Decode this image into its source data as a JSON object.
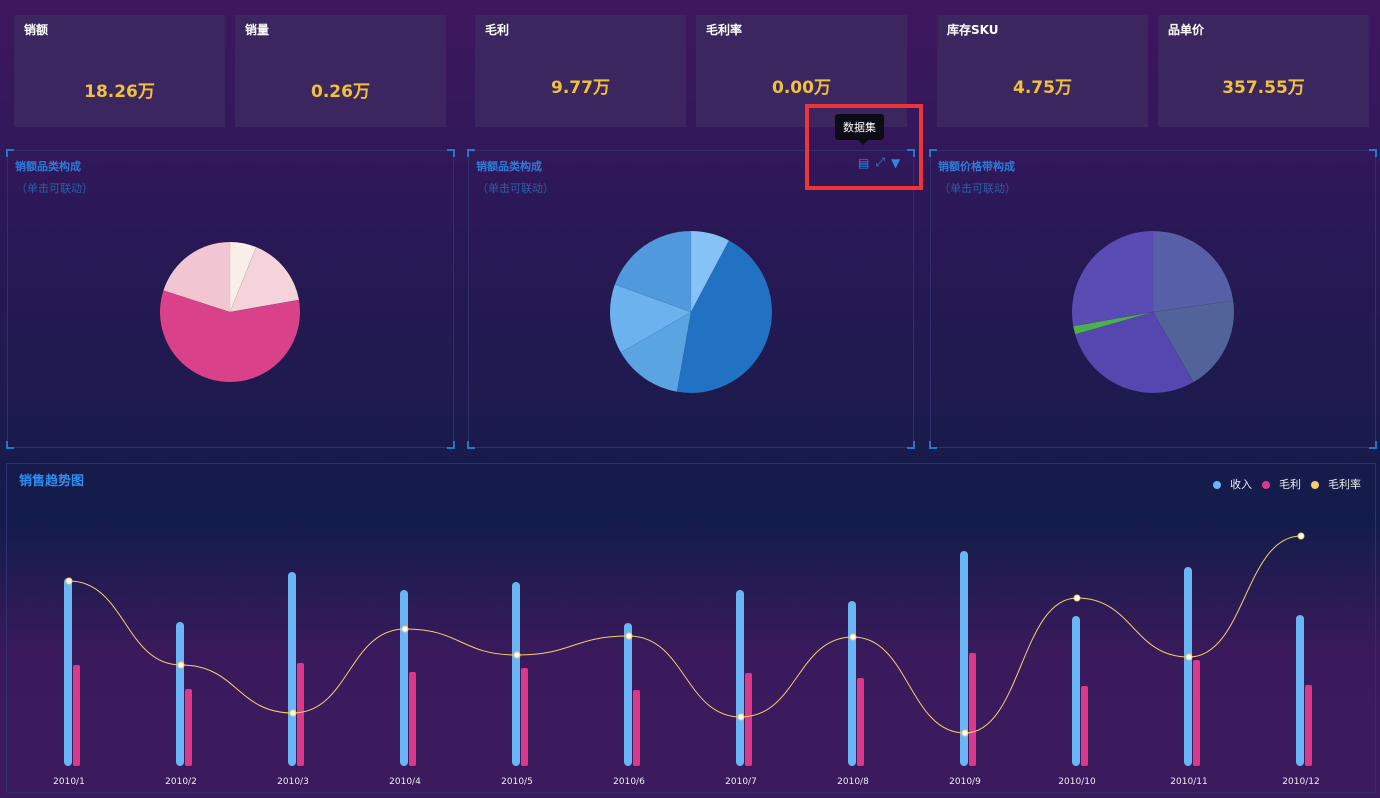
{
  "kpis": [
    {
      "title": "销额",
      "value": "18.26万"
    },
    {
      "title": "销量",
      "value": "0.26万"
    },
    {
      "title": "毛利",
      "value": "9.77万"
    },
    {
      "title": "毛利率",
      "value": "0.00万"
    },
    {
      "title": "库存SKU",
      "value": "4.75万"
    },
    {
      "title": "品单价",
      "value": "357.55万"
    }
  ],
  "panels": [
    {
      "title": "销额品类构成",
      "subtitle": "（单击可联动）"
    },
    {
      "title": "销额品类构成",
      "subtitle": "（单击可联动）"
    },
    {
      "title": "销额价格带构成",
      "subtitle": "（单击可联动）"
    }
  ],
  "toolbox": {
    "tooltip": "数据集",
    "icons": [
      "data-view-icon",
      "zoom-icon",
      "filter-icon"
    ]
  },
  "pies": [
    {
      "slices": [
        {
          "v": 22,
          "c": "#fbeee8"
        },
        {
          "v": 58,
          "c": "#f5d3da"
        },
        {
          "v": 208,
          "c": "#d9428a"
        },
        {
          "v": 72,
          "c": "#f2c5d2"
        }
      ]
    },
    {
      "slices": [
        {
          "v": 28,
          "c": "#86c2f5"
        },
        {
          "v": 162,
          "c": "#2272c4"
        },
        {
          "v": 50,
          "c": "#5aa4e2"
        },
        {
          "v": 50,
          "c": "#6cb2ee"
        },
        {
          "v": 70,
          "c": "#4f99dc"
        }
      ]
    },
    {
      "slices": [
        {
          "v": 82,
          "c": "#575fa6"
        },
        {
          "v": 68,
          "c": "#516399"
        },
        {
          "v": 104,
          "c": "#5546b0"
        },
        {
          "v": 6,
          "c": "#4caf50"
        },
        {
          "v": 100,
          "c": "#5b4bb5"
        }
      ]
    }
  ],
  "chart_data": {
    "type": "bar",
    "title": "销售趋势图",
    "categories": [
      "2010/1",
      "2010/2",
      "2010/3",
      "2010/4",
      "2010/5",
      "2010/6",
      "2010/7",
      "2010/8",
      "2010/9",
      "2010/10",
      "2010/11",
      "2010/12"
    ],
    "series": [
      {
        "name": "收入",
        "type": "bar",
        "color": "#6ab6f5",
        "values": [
          188,
          144,
          194,
          176,
          184,
          143,
          176,
          165,
          215,
          150,
          199,
          151
        ]
      },
      {
        "name": "毛利",
        "type": "bar",
        "color": "#d9398a",
        "values": [
          101,
          77,
          103,
          94,
          98,
          76,
          93,
          88,
          113,
          80,
          106,
          81
        ]
      },
      {
        "name": "毛利率",
        "type": "line",
        "color": "#f5cf6a",
        "values": [
          185,
          101,
          53,
          137,
          111,
          130,
          49,
          129,
          33,
          168,
          109,
          230
        ]
      }
    ]
  }
}
